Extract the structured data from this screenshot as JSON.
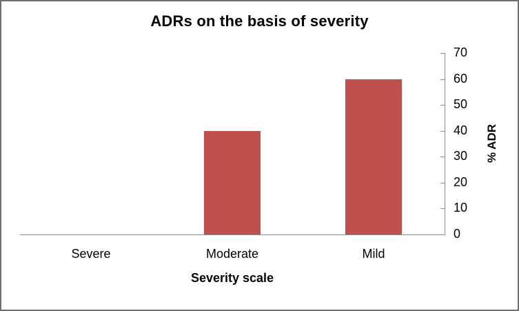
{
  "chart_data": {
    "type": "bar",
    "title": "ADRs on the basis of severity",
    "categories": [
      "Severe",
      "Moderate",
      "Mild"
    ],
    "values": [
      0,
      40,
      60
    ],
    "xlabel": "Severity scale",
    "ylabel": "% ADR",
    "ylim": [
      0,
      70
    ],
    "yticks": [
      0,
      10,
      20,
      30,
      40,
      50,
      60,
      70
    ],
    "yaxis_position": "right",
    "grid": false,
    "legend_position": "none",
    "bar_color": "#c0504d",
    "axis_color": "#8c8c8c",
    "frame_border_color": "#6e6e6e",
    "background_color": "#ffffff",
    "text_color": "#000000"
  }
}
